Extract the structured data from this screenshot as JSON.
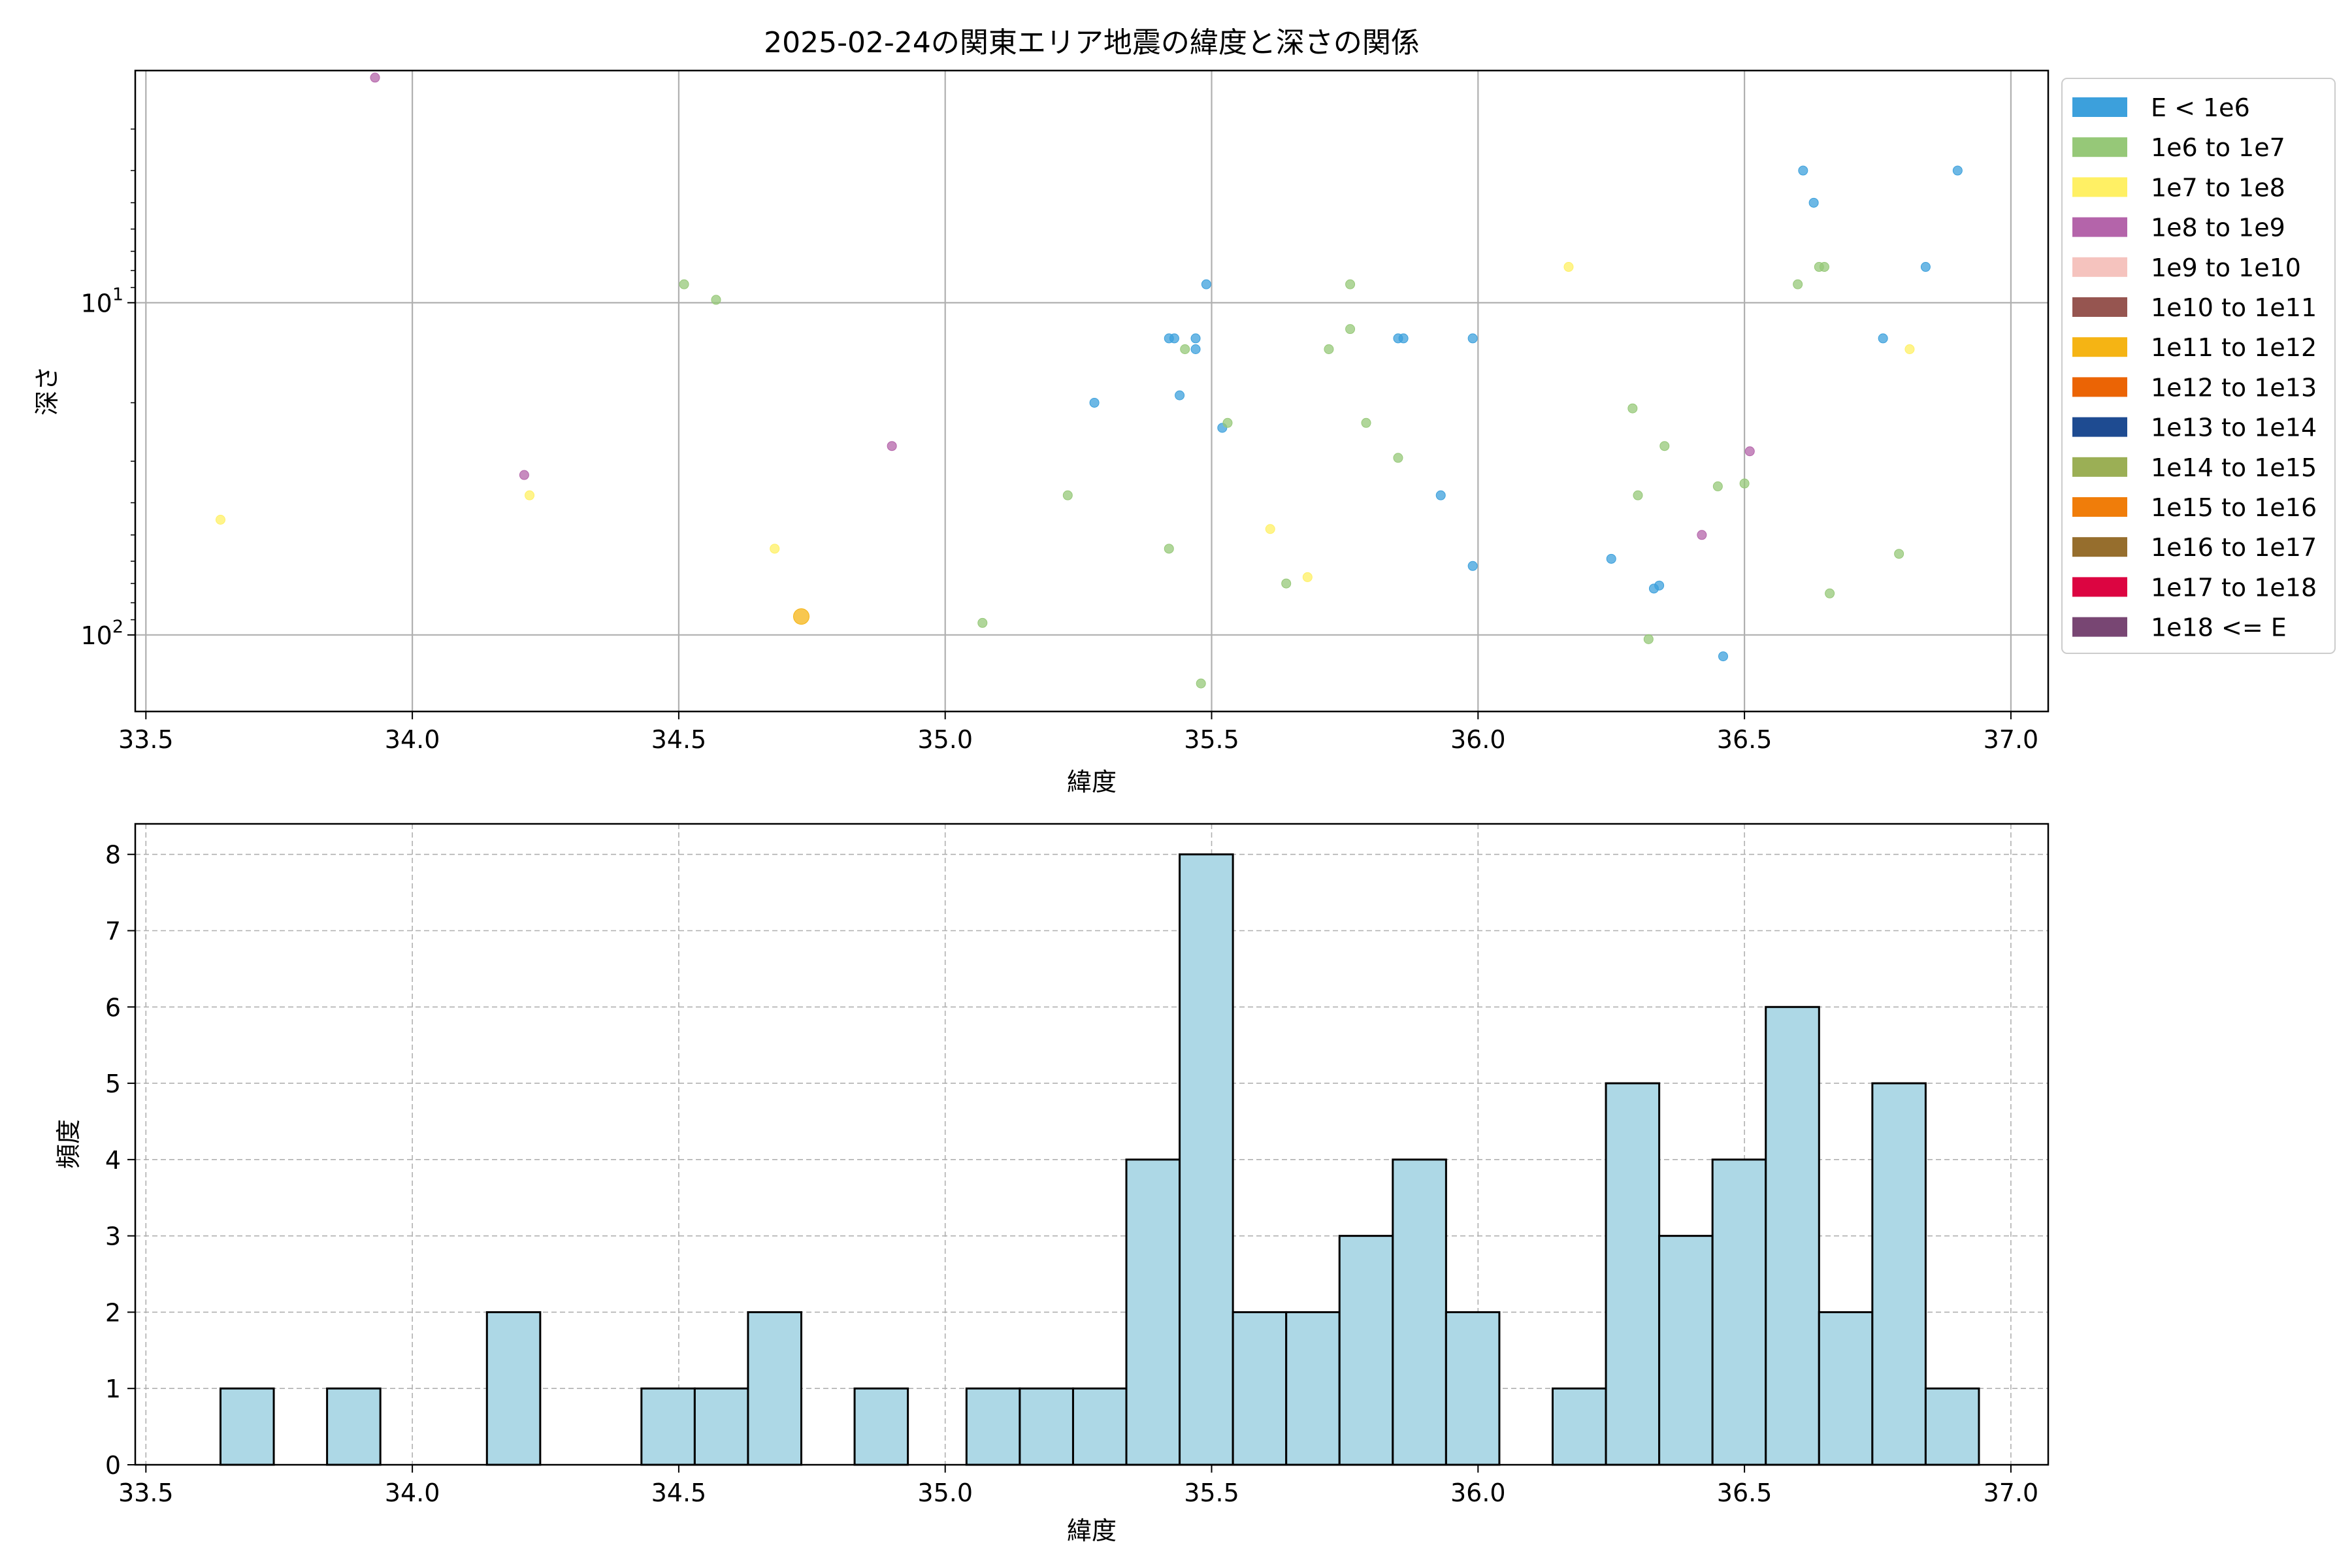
{
  "scatter_chart": {
    "title": "2025-02-24の関東エリア地震の緯度と深さの関係",
    "xlabel": "緯度",
    "ylabel": "深さ",
    "chart_data": {
      "type": "scatter",
      "title": "2025-02-24の関東エリア地震の緯度と深さの関係",
      "xlabel": "緯度",
      "ylabel": "深さ",
      "xlim": [
        33.48,
        37.07
      ],
      "ylim": [
        170,
        2.0
      ],
      "yscale": "log",
      "y_inverted": true,
      "grid": true,
      "legend_placement": "outside-right",
      "x_ticks": [
        "33.5",
        "34.0",
        "34.5",
        "35.0",
        "35.5",
        "36.0",
        "36.5",
        "37.0"
      ],
      "y_ticks": [
        {
          "value": 10,
          "base": "10",
          "exp": "1"
        },
        {
          "value": 100,
          "base": "10",
          "exp": "2"
        }
      ],
      "legend": [
        {
          "label": "E < 1e6",
          "color": "#3ca0dc"
        },
        {
          "label": "1e6 to 1e7",
          "color": "#96c878"
        },
        {
          "label": "1e7 to 1e8",
          "color": "#fff064"
        },
        {
          "label": "1e8 to 1e9",
          "color": "#b464aa"
        },
        {
          "label": "1e9 to 1e10",
          "color": "#f5c3be"
        },
        {
          "label": "1e10 to 1e11",
          "color": "#965550"
        },
        {
          "label": "1e11 to 1e12",
          "color": "#f5b414"
        },
        {
          "label": "1e12 to 1e13",
          "color": "#eb6405"
        },
        {
          "label": "1e13 to 1e14",
          "color": "#1e4b91"
        },
        {
          "label": "1e14 to 1e15",
          "color": "#9baf55"
        },
        {
          "label": "1e15 to 1e16",
          "color": "#f07d0a"
        },
        {
          "label": "1e16 to 1e17",
          "color": "#966e2d"
        },
        {
          "label": "1e17 to 1e18",
          "color": "#dc0541"
        },
        {
          "label": "1e18 <= E",
          "color": "#784673"
        }
      ],
      "points": [
        {
          "x": 33.93,
          "y": 2.1,
          "c": 3
        },
        {
          "x": 36.61,
          "y": 4.0,
          "c": 0
        },
        {
          "x": 36.9,
          "y": 4.0,
          "c": 0
        },
        {
          "x": 36.63,
          "y": 5.0,
          "c": 0
        },
        {
          "x": 36.17,
          "y": 7.8,
          "c": 2
        },
        {
          "x": 36.64,
          "y": 7.8,
          "c": 1
        },
        {
          "x": 36.65,
          "y": 7.8,
          "c": 1
        },
        {
          "x": 36.84,
          "y": 7.8,
          "c": 0
        },
        {
          "x": 34.51,
          "y": 8.8,
          "c": 1
        },
        {
          "x": 35.49,
          "y": 8.8,
          "c": 0
        },
        {
          "x": 35.76,
          "y": 8.8,
          "c": 1
        },
        {
          "x": 36.6,
          "y": 8.8,
          "c": 1
        },
        {
          "x": 34.57,
          "y": 9.8,
          "c": 1
        },
        {
          "x": 35.42,
          "y": 12.8,
          "c": 0
        },
        {
          "x": 35.43,
          "y": 12.8,
          "c": 0
        },
        {
          "x": 35.47,
          "y": 12.8,
          "c": 0
        },
        {
          "x": 35.85,
          "y": 12.8,
          "c": 0
        },
        {
          "x": 35.86,
          "y": 12.8,
          "c": 0
        },
        {
          "x": 35.99,
          "y": 12.8,
          "c": 0
        },
        {
          "x": 36.76,
          "y": 12.8,
          "c": 0
        },
        {
          "x": 35.45,
          "y": 13.8,
          "c": 1
        },
        {
          "x": 35.47,
          "y": 13.8,
          "c": 0
        },
        {
          "x": 35.72,
          "y": 13.8,
          "c": 1
        },
        {
          "x": 36.81,
          "y": 13.8,
          "c": 2
        },
        {
          "x": 35.76,
          "y": 12.0,
          "c": 1
        },
        {
          "x": 35.28,
          "y": 20.0,
          "c": 0
        },
        {
          "x": 35.44,
          "y": 19.0,
          "c": 0
        },
        {
          "x": 36.29,
          "y": 20.8,
          "c": 1
        },
        {
          "x": 35.52,
          "y": 23.8,
          "c": 0
        },
        {
          "x": 35.53,
          "y": 23.0,
          "c": 1
        },
        {
          "x": 35.79,
          "y": 23.0,
          "c": 1
        },
        {
          "x": 34.9,
          "y": 27.0,
          "c": 3
        },
        {
          "x": 36.35,
          "y": 27.0,
          "c": 1
        },
        {
          "x": 36.51,
          "y": 28.0,
          "c": 3
        },
        {
          "x": 35.85,
          "y": 29.3,
          "c": 1
        },
        {
          "x": 34.21,
          "y": 33.0,
          "c": 3
        },
        {
          "x": 36.45,
          "y": 35.7,
          "c": 1
        },
        {
          "x": 36.5,
          "y": 35.0,
          "c": 1
        },
        {
          "x": 34.22,
          "y": 38.0,
          "c": 2
        },
        {
          "x": 35.23,
          "y": 38.0,
          "c": 1
        },
        {
          "x": 35.93,
          "y": 38.0,
          "c": 0
        },
        {
          "x": 36.3,
          "y": 38.0,
          "c": 1
        },
        {
          "x": 33.64,
          "y": 45.0,
          "c": 2
        },
        {
          "x": 35.61,
          "y": 48.0,
          "c": 2
        },
        {
          "x": 36.42,
          "y": 50.0,
          "c": 3
        },
        {
          "x": 34.68,
          "y": 55.0,
          "c": 2
        },
        {
          "x": 35.42,
          "y": 55.0,
          "c": 1
        },
        {
          "x": 36.79,
          "y": 57.0,
          "c": 1
        },
        {
          "x": 36.25,
          "y": 59.0,
          "c": 0
        },
        {
          "x": 35.99,
          "y": 62.0,
          "c": 0
        },
        {
          "x": 35.68,
          "y": 67.0,
          "c": 2
        },
        {
          "x": 35.64,
          "y": 70.0,
          "c": 1
        },
        {
          "x": 36.34,
          "y": 71.0,
          "c": 0
        },
        {
          "x": 36.33,
          "y": 72.5,
          "c": 0
        },
        {
          "x": 36.66,
          "y": 75.0,
          "c": 1
        },
        {
          "x": 34.73,
          "y": 88.0,
          "c": 6,
          "big": true
        },
        {
          "x": 35.07,
          "y": 92.0,
          "c": 1
        },
        {
          "x": 36.32,
          "y": 103.0,
          "c": 1
        },
        {
          "x": 36.46,
          "y": 116.0,
          "c": 0
        },
        {
          "x": 35.48,
          "y": 140.0,
          "c": 1
        }
      ]
    }
  },
  "histogram_chart": {
    "xlabel": "緯度",
    "ylabel": "頻度",
    "chart_data": {
      "type": "bar",
      "xlabel": "緯度",
      "ylabel": "頻度",
      "xlim": [
        33.48,
        37.07
      ],
      "ylim": [
        0,
        8.4
      ],
      "grid": true,
      "bar_color": "#add8e6",
      "edge_color": "#000000",
      "x_ticks": [
        "33.5",
        "34.0",
        "34.5",
        "35.0",
        "35.5",
        "36.0",
        "36.5",
        "37.0"
      ],
      "y_ticks": [
        "0",
        "1",
        "2",
        "3",
        "4",
        "5",
        "6",
        "7",
        "8"
      ],
      "bins": [
        {
          "x0": 33.64,
          "x1": 33.74,
          "value": 1
        },
        {
          "x0": 33.84,
          "x1": 33.94,
          "value": 1
        },
        {
          "x0": 34.14,
          "x1": 34.24,
          "value": 2
        },
        {
          "x0": 34.43,
          "x1": 34.53,
          "value": 1
        },
        {
          "x0": 34.53,
          "x1": 34.63,
          "value": 1
        },
        {
          "x0": 34.63,
          "x1": 34.73,
          "value": 2
        },
        {
          "x0": 34.83,
          "x1": 34.93,
          "value": 1
        },
        {
          "x0": 35.04,
          "x1": 35.14,
          "value": 1
        },
        {
          "x0": 35.14,
          "x1": 35.24,
          "value": 1
        },
        {
          "x0": 35.24,
          "x1": 35.34,
          "value": 1
        },
        {
          "x0": 35.34,
          "x1": 35.44,
          "value": 4
        },
        {
          "x0": 35.44,
          "x1": 35.54,
          "value": 8
        },
        {
          "x0": 35.54,
          "x1": 35.64,
          "value": 2
        },
        {
          "x0": 35.64,
          "x1": 35.74,
          "value": 2
        },
        {
          "x0": 35.74,
          "x1": 35.84,
          "value": 3
        },
        {
          "x0": 35.84,
          "x1": 35.94,
          "value": 4
        },
        {
          "x0": 35.94,
          "x1": 36.04,
          "value": 2
        },
        {
          "x0": 36.14,
          "x1": 36.24,
          "value": 1
        },
        {
          "x0": 36.24,
          "x1": 36.34,
          "value": 5
        },
        {
          "x0": 36.34,
          "x1": 36.44,
          "value": 3
        },
        {
          "x0": 36.44,
          "x1": 36.54,
          "value": 4
        },
        {
          "x0": 36.54,
          "x1": 36.64,
          "value": 6
        },
        {
          "x0": 36.64,
          "x1": 36.74,
          "value": 2
        },
        {
          "x0": 36.74,
          "x1": 36.84,
          "value": 5
        },
        {
          "x0": 36.84,
          "x1": 36.94,
          "value": 1
        }
      ]
    }
  }
}
